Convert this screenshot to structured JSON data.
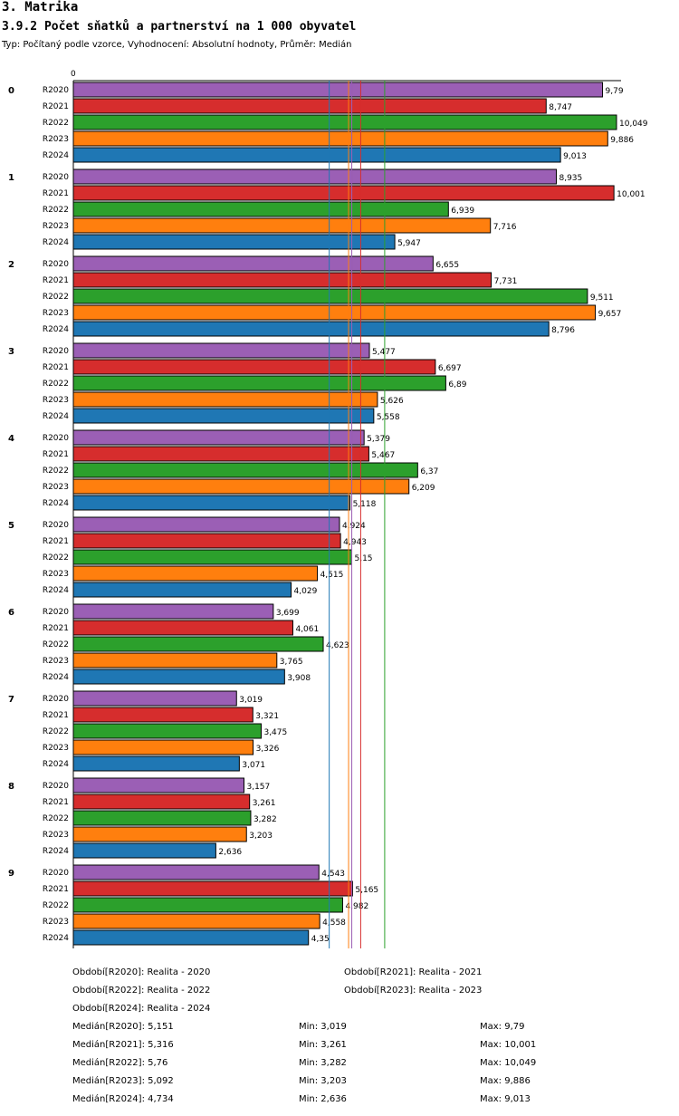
{
  "header": {
    "section": "3. Matrika",
    "title": "3.9.2 Počet sňatků a partnerství na 1 000 obyvatel",
    "subtitle": "Typ: Počítaný podle vzorce, Vyhodnocení: Absolutní hodnoty, Průměr: Medián"
  },
  "chart_data": {
    "type": "bar",
    "orientation": "horizontal",
    "x_axis_origin_label": "0",
    "xlim": [
      0,
      10.049
    ],
    "categories": [
      "0",
      "1",
      "2",
      "3",
      "4",
      "5",
      "6",
      "7",
      "8",
      "9"
    ],
    "series": [
      {
        "name": "R2020",
        "color": "#9b5fb5",
        "values": [
          "9,79",
          "8,935",
          "6,655",
          "5,477",
          "5,379",
          "4,924",
          "3,699",
          "3,019",
          "3,157",
          "4,543"
        ]
      },
      {
        "name": "R2021",
        "color": "#d62d2d",
        "values": [
          "8,747",
          "10,001",
          "7,731",
          "6,697",
          "5,467",
          "4,943",
          "4,061",
          "3,321",
          "3,261",
          "5,165"
        ]
      },
      {
        "name": "R2022",
        "color": "#2ca02c",
        "values": [
          "10,049",
          "6,939",
          "9,511",
          "6,89",
          "6,37",
          "5,15",
          "4,623",
          "3,475",
          "3,282",
          "4,982"
        ]
      },
      {
        "name": "R2023",
        "color": "#ff7f0e",
        "values": [
          "9,886",
          "7,716",
          "9,657",
          "5,626",
          "6,209",
          "4,515",
          "3,765",
          "3,326",
          "3,203",
          "4,558"
        ]
      },
      {
        "name": "R2024",
        "color": "#1f77b4",
        "values": [
          "9,013",
          "5,947",
          "8,796",
          "5,558",
          "5,118",
          "4,029",
          "3,908",
          "3,071",
          "2,636",
          "4,35"
        ]
      }
    ],
    "median_lines": [
      {
        "series": "R2020",
        "value": 5.151,
        "color": "#9b5fb5"
      },
      {
        "series": "R2021",
        "value": 5.316,
        "color": "#d62d2d"
      },
      {
        "series": "R2022",
        "value": 5.76,
        "color": "#2ca02c"
      },
      {
        "series": "R2023",
        "value": 5.092,
        "color": "#ff7f0e"
      },
      {
        "series": "R2024",
        "value": 4.734,
        "color": "#1f77b4"
      }
    ]
  },
  "legend": [
    "Období[R2020]: Realita - 2020",
    "Období[R2021]: Realita - 2021",
    "Období[R2022]: Realita - 2022",
    "Období[R2023]: Realita - 2023",
    "Období[R2024]: Realita - 2024"
  ],
  "stats": [
    {
      "median": "Medián[R2020]: 5,151",
      "min": "Min: 3,019",
      "max": "Max: 9,79"
    },
    {
      "median": "Medián[R2021]: 5,316",
      "min": "Min: 3,261",
      "max": "Max: 10,001"
    },
    {
      "median": "Medián[R2022]: 5,76",
      "min": "Min: 3,282",
      "max": "Max: 10,049"
    },
    {
      "median": "Medián[R2023]: 5,092",
      "min": "Min: 3,203",
      "max": "Max: 9,886"
    },
    {
      "median": "Medián[R2024]: 4,734",
      "min": "Min: 2,636",
      "max": "Max: 9,013"
    }
  ]
}
